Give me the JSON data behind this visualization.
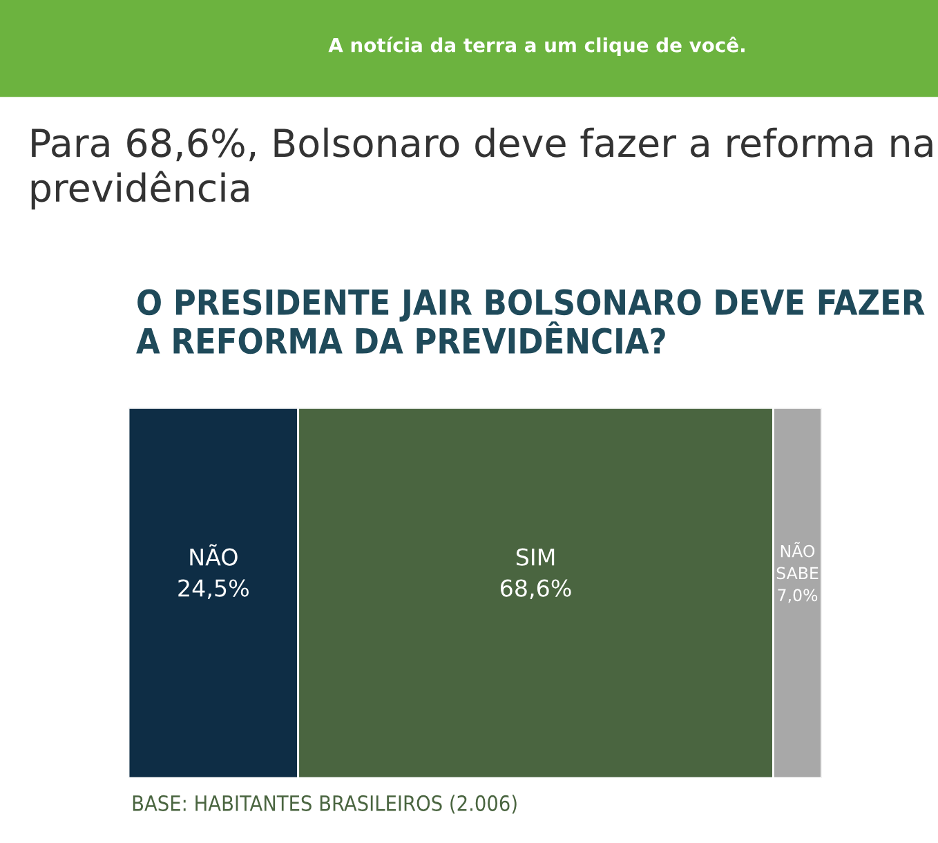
{
  "chart_data": {
    "type": "bar",
    "stacked": true,
    "orientation": "horizontal",
    "title": "Para 68,6%, Bolsonaro deve fazer a reforma na previdência",
    "subtitle": "O PRESIDENTE JAIR BOLSONARO DEVE FAZER A REFORMA DA PREVIDÊNCIA?",
    "annotations": [
      "A notícia da terra a um clique de você.",
      "BASE: HABITANTES BRASILEIROS (2.006)"
    ],
    "categories": [
      null
    ],
    "series": [
      {
        "name": "NÃO",
        "color": "#0e2d45",
        "values": [
          24.5
        ],
        "value_labels": [
          "24,5%"
        ]
      },
      {
        "name": "SIM",
        "color": "#4a6540",
        "values": [
          68.6
        ],
        "value_labels": [
          "68,6%"
        ]
      },
      {
        "name": "NÃO SABE",
        "color": "#a8a8a8",
        "values": [
          7.0
        ],
        "value_labels": [
          "7,0%"
        ]
      }
    ],
    "legend": false
  }
}
